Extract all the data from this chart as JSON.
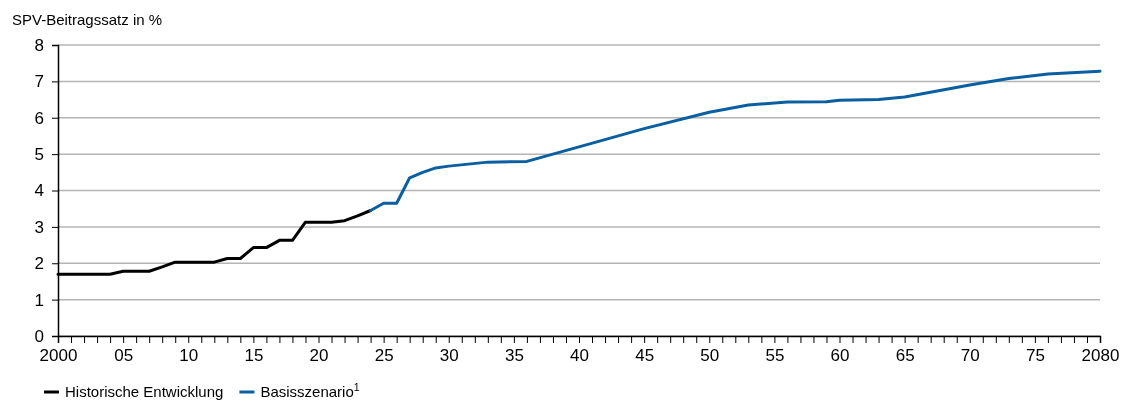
{
  "chart_data": {
    "type": "line",
    "ylabel": "SPV-Beitragssatz in %",
    "series": [
      {
        "name": "Historische Entwicklung",
        "color": "#000000",
        "x": [
          2000,
          2001,
          2002,
          2003,
          2004,
          2005,
          2006,
          2007,
          2008,
          2009,
          2010,
          2011,
          2012,
          2013,
          2014,
          2015,
          2016,
          2017,
          2018,
          2019,
          2020,
          2021,
          2022,
          2023,
          2024
        ],
        "values": [
          1.7,
          1.7,
          1.7,
          1.7,
          1.7,
          1.78,
          1.78,
          1.78,
          1.9,
          2.03,
          2.03,
          2.03,
          2.03,
          2.13,
          2.13,
          2.43,
          2.43,
          2.63,
          2.63,
          3.13,
          3.13,
          3.13,
          3.17,
          3.3,
          3.45
        ]
      },
      {
        "name": "Basisszenario$^{1}$",
        "color": "#0a5fa0",
        "x": [
          2024,
          2025,
          2026,
          2027,
          2028,
          2029,
          2030,
          2033,
          2036,
          2040,
          2045,
          2050,
          2053,
          2056,
          2059,
          2060,
          2063,
          2065,
          2070,
          2073,
          2076,
          2080
        ],
        "values": [
          3.45,
          3.65,
          3.65,
          4.35,
          4.5,
          4.62,
          4.67,
          4.78,
          4.8,
          5.2,
          5.7,
          6.15,
          6.35,
          6.43,
          6.44,
          6.48,
          6.5,
          6.57,
          6.9,
          7.08,
          7.2,
          7.28
        ]
      }
    ],
    "xlim": [
      2000,
      2080
    ],
    "xticks": [
      2000,
      {
        "value": 2001,
        "label": null
      },
      {
        "value": 2002,
        "label": null
      },
      {
        "value": 2003,
        "label": null
      },
      {
        "value": 2004,
        "label": null
      },
      {
        "value": 2005,
        "label": "05"
      },
      {
        "value": 2006,
        "label": null
      },
      {
        "value": 2007,
        "label": null
      },
      {
        "value": 2008,
        "label": null
      },
      {
        "value": 2009,
        "label": null
      },
      {
        "value": 2010,
        "label": "10"
      },
      {
        "value": 2011,
        "label": null
      },
      {
        "value": 2012,
        "label": null
      },
      {
        "value": 2013,
        "label": null
      },
      {
        "value": 2014,
        "label": null
      },
      {
        "value": 2015,
        "label": "15"
      },
      {
        "value": 2016,
        "label": null
      },
      {
        "value": 2017,
        "label": null
      },
      {
        "value": 2018,
        "label": null
      },
      {
        "value": 2019,
        "label": null
      },
      {
        "value": 2020,
        "label": "20"
      },
      {
        "value": 2021,
        "label": null
      },
      {
        "value": 2022,
        "label": null
      },
      {
        "value": 2023,
        "label": null
      },
      {
        "value": 2024,
        "label": null
      },
      {
        "value": 2025,
        "label": "25"
      },
      {
        "value": 2026,
        "label": null
      },
      {
        "value": 2027,
        "label": null
      },
      {
        "value": 2028,
        "label": null
      },
      {
        "value": 2029,
        "label": null
      },
      {
        "value": 2030,
        "label": "30"
      },
      {
        "value": 2031,
        "label": null
      },
      {
        "value": 2032,
        "label": null
      },
      {
        "value": 2033,
        "label": null
      },
      {
        "value": 2034,
        "label": null
      },
      {
        "value": 2035,
        "label": "35"
      },
      {
        "value": 2036,
        "label": null
      },
      {
        "value": 2037,
        "label": null
      },
      {
        "value": 2038,
        "label": null
      },
      {
        "value": 2039,
        "label": null
      },
      {
        "value": 2040,
        "label": "40"
      },
      {
        "value": 2041,
        "label": null
      },
      {
        "value": 2042,
        "label": null
      },
      {
        "value": 2043,
        "label": null
      },
      {
        "value": 2044,
        "label": null
      },
      {
        "value": 2045,
        "label": "45"
      },
      {
        "value": 2046,
        "label": null
      },
      {
        "value": 2047,
        "label": null
      },
      {
        "value": 2048,
        "label": null
      },
      {
        "value": 2049,
        "label": null
      },
      {
        "value": 2050,
        "label": "50"
      },
      {
        "value": 2051,
        "label": null
      },
      {
        "value": 2052,
        "label": null
      },
      {
        "value": 2053,
        "label": null
      },
      {
        "value": 2054,
        "label": null
      },
      {
        "value": 2055,
        "label": "55"
      },
      {
        "value": 2056,
        "label": null
      },
      {
        "value": 2057,
        "label": null
      },
      {
        "value": 2058,
        "label": null
      },
      {
        "value": 2059,
        "label": null
      },
      {
        "value": 2060,
        "label": "60"
      },
      {
        "value": 2061,
        "label": null
      },
      {
        "value": 2062,
        "label": null
      },
      {
        "value": 2063,
        "label": null
      },
      {
        "value": 2064,
        "label": null
      },
      {
        "value": 2065,
        "label": "65"
      },
      {
        "value": 2066,
        "label": null
      },
      {
        "value": 2067,
        "label": null
      },
      {
        "value": 2068,
        "label": null
      },
      {
        "value": 2069,
        "label": null
      },
      {
        "value": 2070,
        "label": "70"
      },
      {
        "value": 2071,
        "label": null
      },
      {
        "value": 2072,
        "label": null
      },
      {
        "value": 2073,
        "label": null
      },
      {
        "value": 2074,
        "label": null
      },
      {
        "value": 2075,
        "label": "75"
      },
      {
        "value": 2076,
        "label": null
      },
      {
        "value": 2077,
        "label": null
      },
      {
        "value": 2078,
        "label": null
      },
      {
        "value": 2079,
        "label": null
      },
      2080
    ],
    "ylim": [
      0,
      8
    ],
    "yticks": [
      0,
      1,
      2,
      3,
      4,
      5,
      6,
      7,
      8
    ],
    "grid": "y",
    "legend": "bottom",
    "marker": "none",
    "line_style": "solid"
  }
}
